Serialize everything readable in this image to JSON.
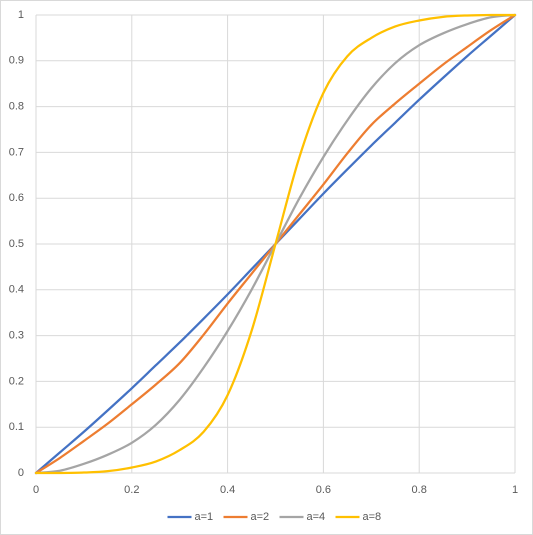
{
  "chart_data": {
    "type": "line",
    "x": [
      0,
      0.05,
      0.1,
      0.15,
      0.2,
      0.25,
      0.3,
      0.35,
      0.4,
      0.45,
      0.5,
      0.55,
      0.6,
      0.65,
      0.7,
      0.75,
      0.8,
      0.85,
      0.9,
      0.95,
      1
    ],
    "series": [
      {
        "name": "a=1",
        "color": "#4472c4",
        "values": [
          0,
          0.045,
          0.09,
          0.137,
          0.185,
          0.235,
          0.285,
          0.337,
          0.39,
          0.445,
          0.5,
          0.555,
          0.61,
          0.663,
          0.715,
          0.765,
          0.815,
          0.863,
          0.91,
          0.955,
          1
        ]
      },
      {
        "name": "a=2",
        "color": "#ed7d31",
        "values": [
          0,
          0.033,
          0.07,
          0.108,
          0.15,
          0.193,
          0.24,
          0.302,
          0.37,
          0.435,
          0.5,
          0.565,
          0.63,
          0.698,
          0.76,
          0.807,
          0.85,
          0.892,
          0.93,
          0.967,
          1
        ]
      },
      {
        "name": "a=4",
        "color": "#a5a5a5",
        "values": [
          0,
          0.005,
          0.02,
          0.04,
          0.066,
          0.105,
          0.16,
          0.23,
          0.31,
          0.4,
          0.5,
          0.6,
          0.69,
          0.77,
          0.84,
          0.895,
          0.934,
          0.96,
          0.98,
          0.995,
          1
        ]
      },
      {
        "name": "a=8",
        "color": "#ffc000",
        "values": [
          0,
          0,
          0.001,
          0.004,
          0.012,
          0.025,
          0.05,
          0.09,
          0.17,
          0.31,
          0.5,
          0.69,
          0.83,
          0.91,
          0.95,
          0.975,
          0.988,
          0.996,
          0.999,
          1,
          1
        ]
      }
    ],
    "xlim": [
      0,
      1
    ],
    "xticks": [
      0,
      0.2,
      0.4,
      0.6,
      0.8,
      1
    ],
    "ylim": [
      0,
      1
    ],
    "yticks": [
      0,
      0.1,
      0.2,
      0.3,
      0.4,
      0.5,
      0.6,
      0.7,
      0.8,
      0.9,
      1
    ],
    "grid": true,
    "legend": "bottom"
  }
}
